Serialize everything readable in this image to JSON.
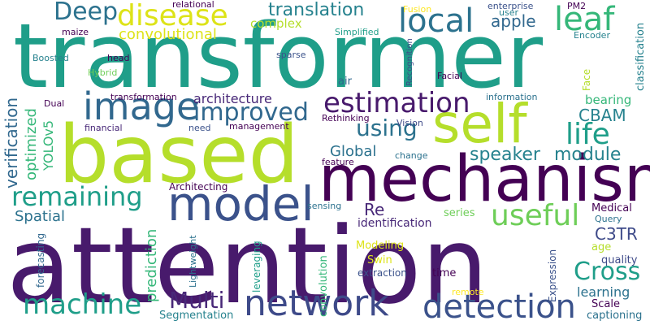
{
  "palette": {
    "dark_purple": "#481a6c",
    "indigo": "#3b528b",
    "steel_blue": "#31688e",
    "teal": "#26828e",
    "sea_green": "#1f9e89",
    "green": "#35b779",
    "light_green": "#6ece58",
    "lime": "#b5de2b",
    "yellow": "#fde725"
  },
  "words": [
    {
      "text": "transformer",
      "color": "#1f9e89"
    },
    {
      "text": "attention",
      "color": "#481a6c"
    },
    {
      "text": "based",
      "color": "#b5de2b"
    },
    {
      "text": "mechanism",
      "color": "#440154"
    },
    {
      "text": "self",
      "color": "#b5de2b"
    },
    {
      "text": "model",
      "color": "#3b528b"
    },
    {
      "text": "image",
      "color": "#31688e"
    },
    {
      "text": "network",
      "color": "#3e4a89"
    },
    {
      "text": "detection",
      "color": "#3b528b"
    },
    {
      "text": "disease",
      "color": "#dde318"
    },
    {
      "text": "local",
      "color": "#2c728e"
    },
    {
      "text": "leaf",
      "color": "#35b779"
    },
    {
      "text": "Deep",
      "color": "#2c728e"
    },
    {
      "text": "estimation",
      "color": "#481a6c"
    },
    {
      "text": "improved",
      "color": "#31688e"
    },
    {
      "text": "remaining",
      "color": "#1f9e89"
    },
    {
      "text": "useful",
      "color": "#6ece58"
    },
    {
      "text": "life",
      "color": "#1f9e89"
    },
    {
      "text": "machine",
      "color": "#1f9e89"
    },
    {
      "text": "using",
      "color": "#2c728e"
    },
    {
      "text": "Multi",
      "color": "#482878"
    },
    {
      "text": "Cross",
      "color": "#1f9e89"
    },
    {
      "text": "translation",
      "color": "#26828e"
    },
    {
      "text": "convolutional",
      "color": "#dde318"
    },
    {
      "text": "complex",
      "color": "#b5de2b"
    },
    {
      "text": "apple",
      "color": "#31688e"
    },
    {
      "text": "speaker",
      "color": "#26828e"
    },
    {
      "text": "module",
      "color": "#26828e"
    },
    {
      "text": "CBAM",
      "color": "#26828e"
    },
    {
      "text": "C3TR",
      "color": "#3e4a89"
    },
    {
      "text": "Global",
      "color": "#2c728e"
    },
    {
      "text": "Spatial",
      "color": "#2c728e"
    },
    {
      "text": "verification",
      "color": "#31688e"
    },
    {
      "text": "optimized",
      "color": "#35b779"
    },
    {
      "text": "YOLOv5",
      "color": "#35b779"
    },
    {
      "text": "bearing",
      "color": "#35b779"
    },
    {
      "text": "architecture",
      "color": "#482878"
    },
    {
      "text": "Re",
      "color": "#482878"
    },
    {
      "text": "identification",
      "color": "#482878"
    },
    {
      "text": "prediction",
      "color": "#35b779"
    },
    {
      "text": "learning",
      "color": "#2c728e"
    },
    {
      "text": "Scale",
      "color": "#440154"
    },
    {
      "text": "captioning",
      "color": "#2c728e"
    },
    {
      "text": "quality",
      "color": "#3e4a89"
    },
    {
      "text": "Medical",
      "color": "#440154"
    },
    {
      "text": "Query",
      "color": "#2c728e"
    },
    {
      "text": "age",
      "color": "#b5de2b"
    },
    {
      "text": "series",
      "color": "#6ece58"
    },
    {
      "text": "Swin",
      "color": "#dde318"
    },
    {
      "text": "time",
      "color": "#440154"
    },
    {
      "text": "Modeling",
      "color": "#dde318"
    },
    {
      "text": "extraction",
      "color": "#3b528b"
    },
    {
      "text": "convolution",
      "color": "#35b779"
    },
    {
      "text": "leveraging",
      "color": "#1f9e89"
    },
    {
      "text": "Lightweight",
      "color": "#2c728e"
    },
    {
      "text": "forecasting",
      "color": "#31688e"
    },
    {
      "text": "Segmentation",
      "color": "#26828e"
    },
    {
      "text": "sensing",
      "color": "#2c728e"
    },
    {
      "text": "remote",
      "color": "#fde725"
    },
    {
      "text": "Expression",
      "color": "#3b528b"
    },
    {
      "text": "Architecting",
      "color": "#440154"
    },
    {
      "text": "feature",
      "color": "#440154"
    },
    {
      "text": "change",
      "color": "#2c728e"
    },
    {
      "text": "Rethinking",
      "color": "#440154"
    },
    {
      "text": "Vision",
      "color": "#3e4a89"
    },
    {
      "text": "management",
      "color": "#440154"
    },
    {
      "text": "need",
      "color": "#3b528b"
    },
    {
      "text": "financial",
      "color": "#482878"
    },
    {
      "text": "Dual",
      "color": "#440154"
    },
    {
      "text": "information",
      "color": "#2c728e"
    },
    {
      "text": "transformation",
      "color": "#440154"
    },
    {
      "text": "air",
      "color": "#31688e"
    },
    {
      "text": "Facial",
      "color": "#440154"
    },
    {
      "text": "Recognition",
      "color": "#3e4a89"
    },
    {
      "text": "sparse",
      "color": "#3b528b"
    },
    {
      "text": "head",
      "color": "#440154"
    },
    {
      "text": "Boosted",
      "color": "#26828e"
    },
    {
      "text": "Hybrid",
      "color": "#6ece58"
    },
    {
      "text": "maize",
      "color": "#440154"
    },
    {
      "text": "relational",
      "color": "#440154"
    },
    {
      "text": "Simplified",
      "color": "#1f9e89"
    },
    {
      "text": "Fusion",
      "color": "#fde725"
    },
    {
      "text": "enterprise",
      "color": "#3b528b"
    },
    {
      "text": "user",
      "color": "#26828e"
    },
    {
      "text": "PM2",
      "color": "#440154"
    },
    {
      "text": "Encoder",
      "color": "#26828e"
    },
    {
      "text": "Face",
      "color": "#b5de2b"
    },
    {
      "text": "classification",
      "color": "#26828e"
    }
  ]
}
